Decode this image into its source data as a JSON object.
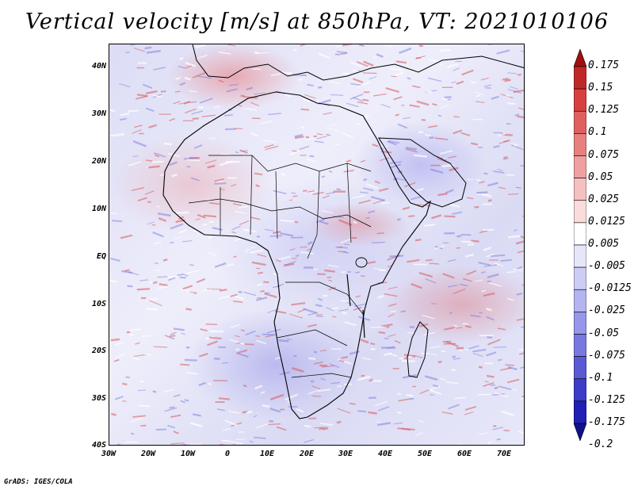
{
  "title": "Vertical velocity [m/s] at 850hPa, VT: 2021010106",
  "y_axis_labels": [
    "40N",
    "30N",
    "20N",
    "10N",
    "EQ",
    "10S",
    "20S",
    "30S",
    "40S"
  ],
  "x_axis_labels": [
    "30W",
    "20W",
    "10W",
    "0",
    "10E",
    "20E",
    "30E",
    "40E",
    "50E",
    "60E",
    "70E"
  ],
  "colorbar": {
    "labels": [
      "0.175",
      "0.15",
      "0.125",
      "0.1",
      "0.075",
      "0.05",
      "0.025",
      "0.0125",
      "0.005",
      "-0.005",
      "-0.0125",
      "-0.025",
      "-0.05",
      "-0.075",
      "-0.1",
      "-0.125",
      "-0.175",
      "-0.2"
    ],
    "colors": [
      "#a01010",
      "#c02828",
      "#d84040",
      "#e06060",
      "#e88080",
      "#f0a0a0",
      "#f5c0c0",
      "#fadcdc",
      "#ffffff",
      "#e6e6fa",
      "#ccccf5",
      "#b4b4f0",
      "#9696eb",
      "#7878e1",
      "#5a5ad2",
      "#3c3cc8",
      "#2020b4",
      "#10108c"
    ]
  },
  "credit": "GrADS: IGES/COLA"
}
